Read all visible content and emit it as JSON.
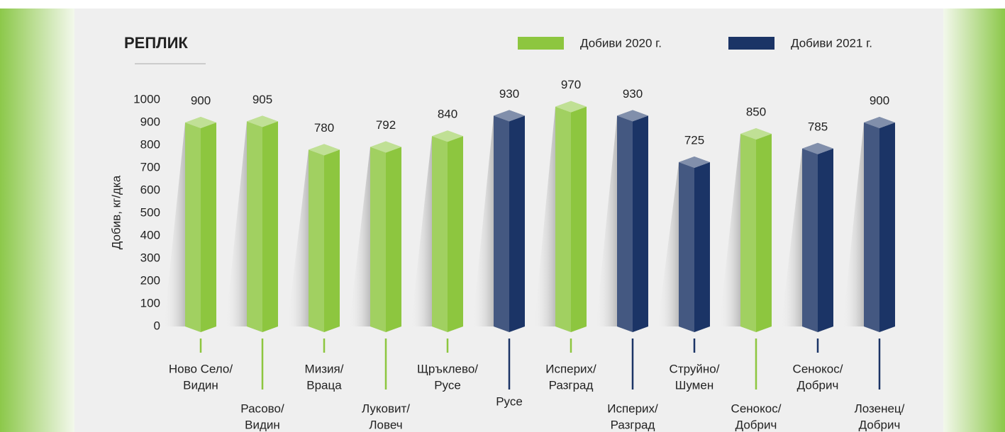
{
  "chart_data": {
    "type": "bar",
    "title": "РЕПЛИК",
    "y_label": "Добив, кг/дка",
    "categories": [
      [
        "Ново Село/",
        "Видин"
      ],
      [
        "Расово/",
        "Видин"
      ],
      [
        "Мизия/",
        "Враца"
      ],
      [
        "Луковит/",
        "Ловеч"
      ],
      [
        "Щръклево/",
        "Русе"
      ],
      [
        "Русе"
      ],
      [
        "Исперих/",
        "Разград"
      ],
      [
        "Исперих/",
        "Разград"
      ],
      [
        "Струйно/",
        "Шумен"
      ],
      [
        "Сенокос/",
        "Добрич"
      ],
      [
        "Сенокос/",
        "Добрич"
      ],
      [
        "Лозенец/",
        "Добрич"
      ]
    ],
    "series": [
      {
        "name": "Добиви 2020 г.",
        "color": "#8dc63f",
        "values": [
          900,
          905,
          780,
          792,
          840,
          null,
          970,
          null,
          null,
          850,
          null,
          null
        ]
      },
      {
        "name": "Добиви 2021 г.",
        "color": "#1b3466",
        "values": [
          null,
          null,
          null,
          null,
          null,
          930,
          null,
          930,
          725,
          null,
          785,
          900
        ]
      }
    ],
    "ylim": [
      0,
      1000
    ],
    "yticks": [
      0,
      100,
      200,
      300,
      400,
      500,
      600,
      700,
      800,
      900,
      1000
    ],
    "grid": false
  }
}
